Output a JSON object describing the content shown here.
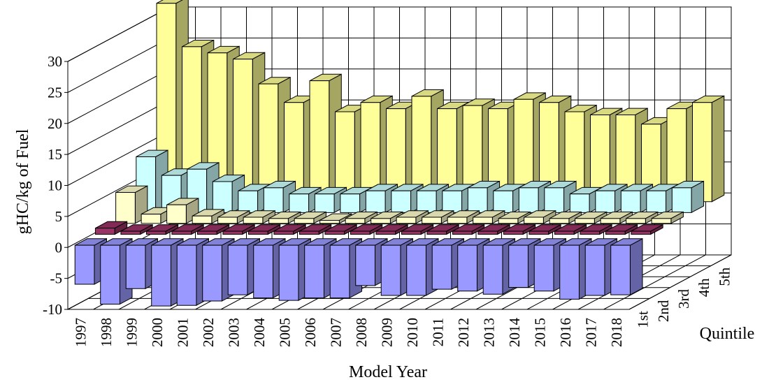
{
  "chart_data": {
    "type": "bar3d",
    "y_label": "gHC/kg of Fuel",
    "x_label": "Model Year",
    "z_label": "Quintile",
    "categories": [
      "1997",
      "1998",
      "1999",
      "2000",
      "2001",
      "2002",
      "2003",
      "2004",
      "2005",
      "2006",
      "2007",
      "2008",
      "2009",
      "2010",
      "2011",
      "2012",
      "2013",
      "2014",
      "2015",
      "2016",
      "2017",
      "2018"
    ],
    "series": [
      {
        "name": "1st",
        "color": "#9999ff",
        "values": [
          -6.3,
          -9.5,
          -7,
          -9.8,
          -9.7,
          -9,
          -8,
          -8.5,
          -8.9,
          -8.5,
          -8.5,
          -6.5,
          -8.1,
          -8.1,
          -7.1,
          -7.4,
          -7.9,
          -6.8,
          -7.4,
          -8.7,
          -8.1,
          -8
        ]
      },
      {
        "name": "2nd",
        "color": "#993366",
        "values": [
          1,
          0.5,
          0.5,
          0.5,
          0.5,
          0.5,
          0.5,
          0.5,
          0.5,
          0.5,
          0.5,
          0.5,
          0.5,
          0.5,
          0.5,
          0.5,
          0.5,
          0.5,
          0.5,
          0.5,
          0.5,
          0.5
        ]
      },
      {
        "name": "3rd",
        "color": "#ffffcc",
        "values": [
          5,
          1.5,
          3,
          1.2,
          1,
          1,
          0.8,
          0.8,
          0.5,
          0.8,
          0.8,
          1,
          1,
          1,
          1,
          0.8,
          1,
          0.8,
          0.8,
          0.8,
          0.8,
          0.8
        ]
      },
      {
        "name": "4th",
        "color": "#ccffff",
        "values": [
          9,
          6,
          7,
          5,
          3.5,
          4,
          3,
          3,
          3,
          3.5,
          3.5,
          3.5,
          3.5,
          4,
          3.5,
          4,
          4,
          3,
          3.5,
          3.5,
          3.5,
          4
        ]
      },
      {
        "name": "5th",
        "color": "#ffff99",
        "values": [
          32,
          25,
          24,
          23,
          19,
          16,
          19.5,
          14.5,
          16,
          15,
          17,
          15,
          15.5,
          15,
          16.5,
          16,
          14.5,
          14,
          14,
          12.5,
          15,
          16
        ]
      }
    ],
    "ylim": [
      -10,
      30
    ],
    "yticks": [
      -10,
      -5,
      0,
      5,
      10,
      15,
      20,
      25,
      30
    ],
    "grid": true
  }
}
